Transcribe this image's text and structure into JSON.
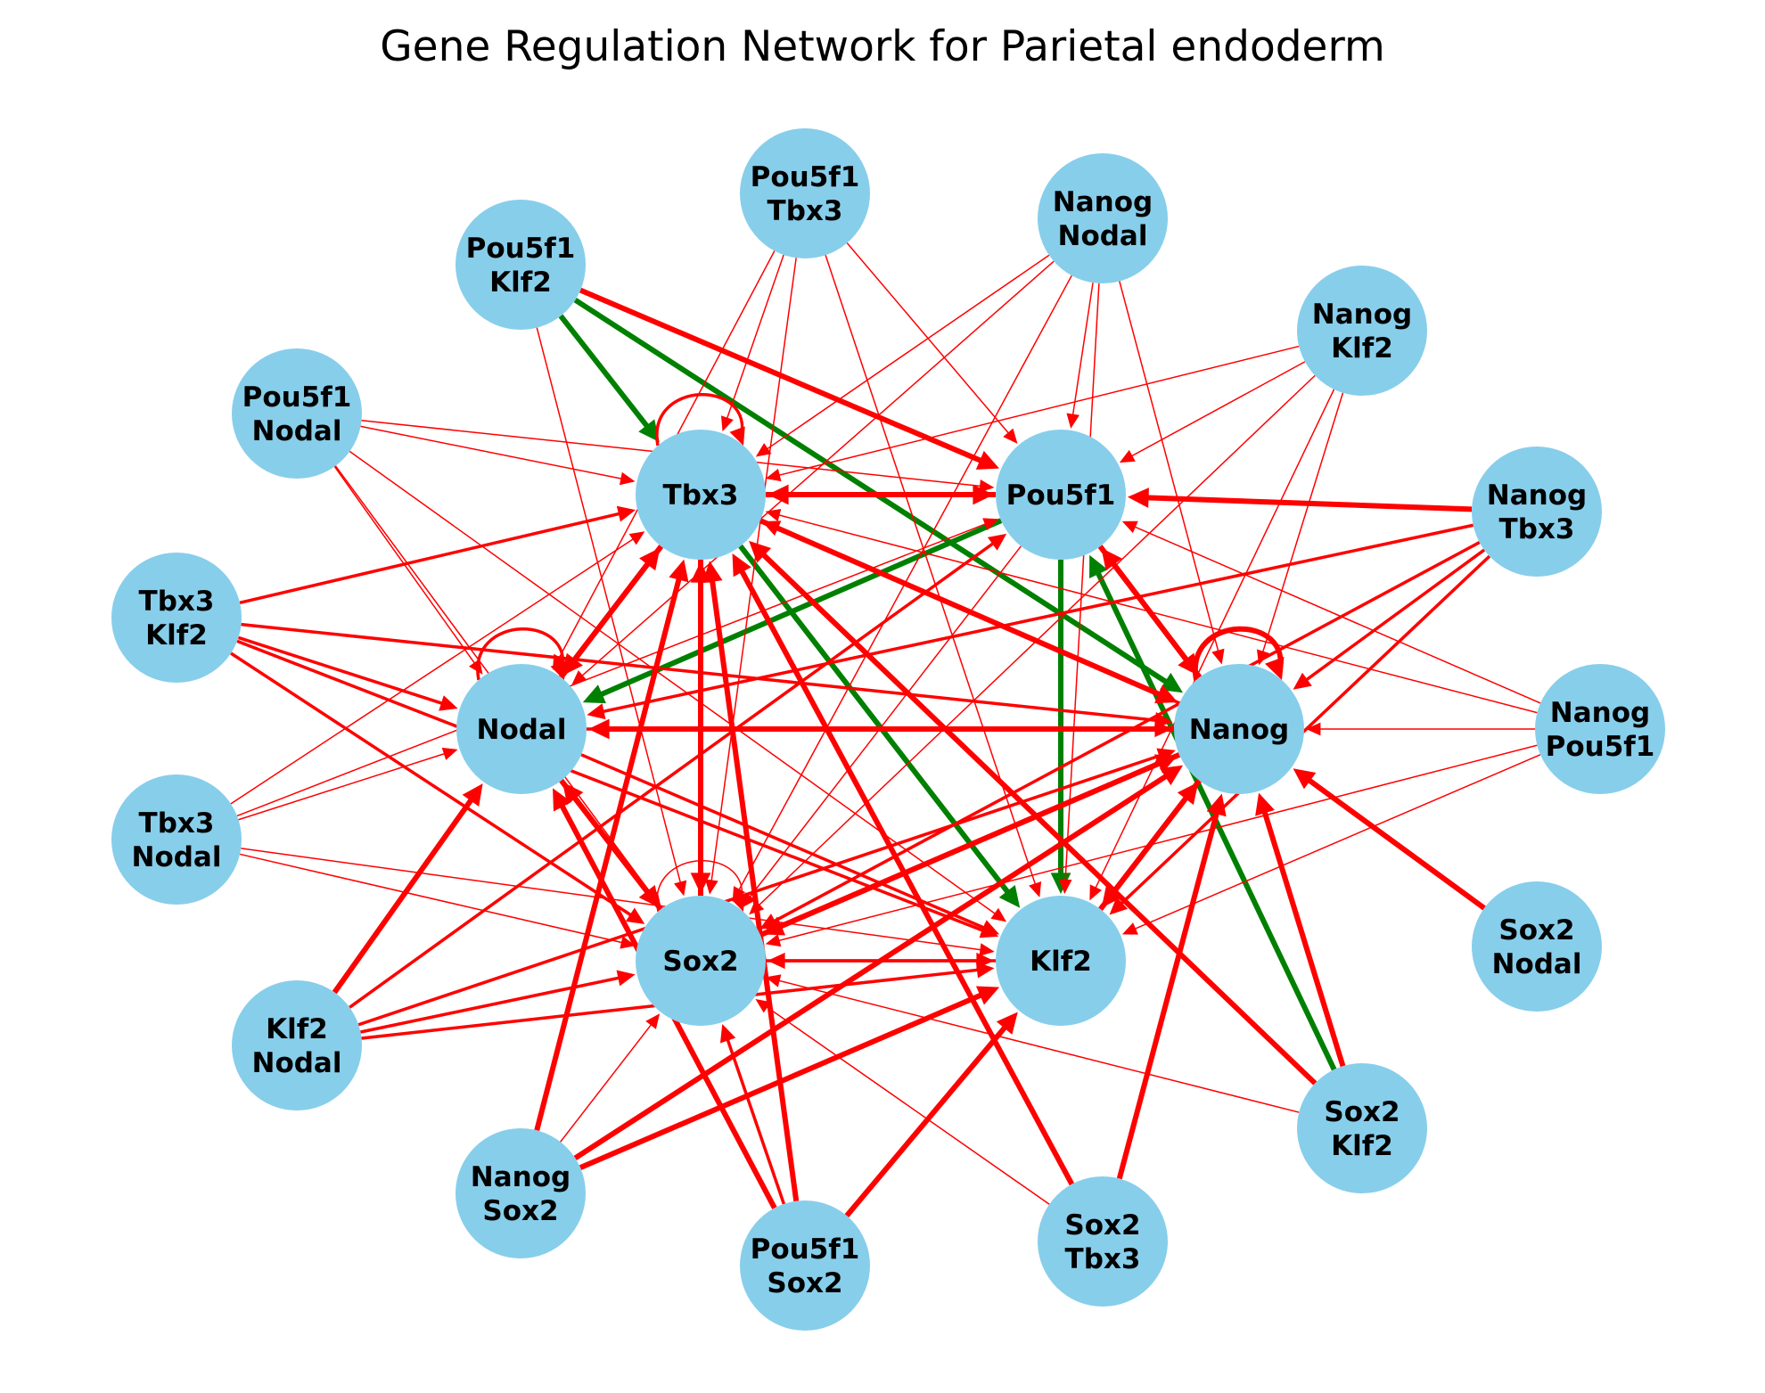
{
  "title": "Gene Regulation Network for Parietal endoderm",
  "colors": {
    "node_fill": "#87CEEB",
    "repression": "#FF0000",
    "activation": "#008000",
    "background": "#FFFFFF"
  },
  "nodes": [
    {
      "id": "Tbx3",
      "lines": [
        "Tbx3"
      ]
    },
    {
      "id": "Pou5f1",
      "lines": [
        "Pou5f1"
      ]
    },
    {
      "id": "Nanog",
      "lines": [
        "Nanog"
      ]
    },
    {
      "id": "Nodal",
      "lines": [
        "Nodal"
      ]
    },
    {
      "id": "Sox2",
      "lines": [
        "Sox2"
      ]
    },
    {
      "id": "Klf2",
      "lines": [
        "Klf2"
      ]
    },
    {
      "id": "Pou5f1_Tbx3",
      "lines": [
        "Pou5f1",
        "Tbx3"
      ]
    },
    {
      "id": "Nanog_Nodal",
      "lines": [
        "Nanog",
        "Nodal"
      ]
    },
    {
      "id": "Pou5f1_Klf2",
      "lines": [
        "Pou5f1",
        "Klf2"
      ]
    },
    {
      "id": "Nanog_Klf2",
      "lines": [
        "Nanog",
        "Klf2"
      ]
    },
    {
      "id": "Pou5f1_Nodal",
      "lines": [
        "Pou5f1",
        "Nodal"
      ]
    },
    {
      "id": "Nanog_Tbx3",
      "lines": [
        "Nanog",
        "Tbx3"
      ]
    },
    {
      "id": "Tbx3_Klf2",
      "lines": [
        "Tbx3",
        "Klf2"
      ]
    },
    {
      "id": "Nanog_Pou5f1",
      "lines": [
        "Nanog",
        "Pou5f1"
      ]
    },
    {
      "id": "Tbx3_Nodal",
      "lines": [
        "Tbx3",
        "Nodal"
      ]
    },
    {
      "id": "Sox2_Nodal",
      "lines": [
        "Sox2",
        "Nodal"
      ]
    },
    {
      "id": "Klf2_Nodal",
      "lines": [
        "Klf2",
        "Nodal"
      ]
    },
    {
      "id": "Sox2_Klf2",
      "lines": [
        "Sox2",
        "Klf2"
      ]
    },
    {
      "id": "Nanog_Sox2",
      "lines": [
        "Nanog",
        "Sox2"
      ]
    },
    {
      "id": "Sox2_Tbx3",
      "lines": [
        "Sox2",
        "Tbx3"
      ]
    },
    {
      "id": "Pou5f1_Sox2",
      "lines": [
        "Pou5f1",
        "Sox2"
      ]
    }
  ],
  "edges": [
    {
      "from": "Pou5f1_Klf2",
      "to": "Tbx3",
      "type": "activation",
      "weight": 3
    },
    {
      "from": "Pou5f1_Klf2",
      "to": "Nanog",
      "type": "activation",
      "weight": 3
    },
    {
      "from": "Pou5f1_Klf2",
      "to": "Pou5f1",
      "type": "repression",
      "weight": 3
    },
    {
      "from": "Pou5f1_Klf2",
      "to": "Sox2",
      "type": "repression",
      "weight": 1
    },
    {
      "from": "Tbx3",
      "to": "Klf2",
      "type": "activation",
      "weight": 3
    },
    {
      "from": "Pou5f1",
      "to": "Klf2",
      "type": "activation",
      "weight": 3
    },
    {
      "from": "Pou5f1",
      "to": "Nodal",
      "type": "activation",
      "weight": 3
    },
    {
      "from": "Sox2_Klf2",
      "to": "Pou5f1",
      "type": "activation",
      "weight": 3
    },
    {
      "from": "Sox2_Klf2",
      "to": "Nanog",
      "type": "repression",
      "weight": 3
    },
    {
      "from": "Sox2_Klf2",
      "to": "Tbx3",
      "type": "repression",
      "weight": 3
    },
    {
      "from": "Sox2_Klf2",
      "to": "Sox2",
      "type": "repression",
      "weight": 1
    },
    {
      "from": "Tbx3",
      "to": "Pou5f1",
      "type": "repression",
      "weight": 3
    },
    {
      "from": "Pou5f1",
      "to": "Tbx3",
      "type": "repression",
      "weight": 3
    },
    {
      "from": "Tbx3",
      "to": "Nodal",
      "type": "repression",
      "weight": 3
    },
    {
      "from": "Nodal",
      "to": "Tbx3",
      "type": "repression",
      "weight": 3
    },
    {
      "from": "Tbx3",
      "to": "Sox2",
      "type": "repression",
      "weight": 3
    },
    {
      "from": "Sox2",
      "to": "Tbx3",
      "type": "repression",
      "weight": 3
    },
    {
      "from": "Tbx3",
      "to": "Nanog",
      "type": "repression",
      "weight": 3
    },
    {
      "from": "Nanog",
      "to": "Tbx3",
      "type": "repression",
      "weight": 2
    },
    {
      "from": "Pou5f1",
      "to": "Nanog",
      "type": "repression",
      "weight": 3
    },
    {
      "from": "Nanog",
      "to": "Pou5f1",
      "type": "repression",
      "weight": 3
    },
    {
      "from": "Nanog",
      "to": "Nodal",
      "type": "repression",
      "weight": 3
    },
    {
      "from": "Nodal",
      "to": "Nanog",
      "type": "repression",
      "weight": 2
    },
    {
      "from": "Nanog",
      "to": "Sox2",
      "type": "repression",
      "weight": 3
    },
    {
      "from": "Sox2",
      "to": "Nanog",
      "type": "repression",
      "weight": 3
    },
    {
      "from": "Nanog",
      "to": "Klf2",
      "type": "repression",
      "weight": 3
    },
    {
      "from": "Klf2",
      "to": "Nanog",
      "type": "repression",
      "weight": 3
    },
    {
      "from": "Nodal",
      "to": "Sox2",
      "type": "repression",
      "weight": 3
    },
    {
      "from": "Sox2",
      "to": "Nodal",
      "type": "repression",
      "weight": 3
    },
    {
      "from": "Nodal",
      "to": "Klf2",
      "type": "repression",
      "weight": 2
    },
    {
      "from": "Sox2",
      "to": "Klf2",
      "type": "repression",
      "weight": 2
    },
    {
      "from": "Klf2",
      "to": "Sox2",
      "type": "repression",
      "weight": 2
    },
    {
      "from": "Pou5f1",
      "to": "Sox2",
      "type": "repression",
      "weight": 1
    },
    {
      "from": "Nanog_Tbx3",
      "to": "Pou5f1",
      "type": "repression",
      "weight": 3
    },
    {
      "from": "Nanog_Tbx3",
      "to": "Nanog",
      "type": "repression",
      "weight": 2
    },
    {
      "from": "Nanog_Tbx3",
      "to": "Nodal",
      "type": "repression",
      "weight": 2
    },
    {
      "from": "Nanog_Tbx3",
      "to": "Klf2",
      "type": "repression",
      "weight": 2
    },
    {
      "from": "Nanog_Tbx3",
      "to": "Sox2",
      "type": "repression",
      "weight": 2
    },
    {
      "from": "Nanog_Pou5f1",
      "to": "Nanog",
      "type": "repression",
      "weight": 1
    },
    {
      "from": "Nanog_Pou5f1",
      "to": "Tbx3",
      "type": "repression",
      "weight": 1
    },
    {
      "from": "Nanog_Pou5f1",
      "to": "Pou5f1",
      "type": "repression",
      "weight": 1
    },
    {
      "from": "Nanog_Pou5f1",
      "to": "Sox2",
      "type": "repression",
      "weight": 1
    },
    {
      "from": "Nanog_Pou5f1",
      "to": "Klf2",
      "type": "repression",
      "weight": 1
    },
    {
      "from": "Sox2_Nodal",
      "to": "Nanog",
      "type": "repression",
      "weight": 3
    },
    {
      "from": "Sox2_Tbx3",
      "to": "Tbx3",
      "type": "repression",
      "weight": 3
    },
    {
      "from": "Sox2_Tbx3",
      "to": "Nanog",
      "type": "repression",
      "weight": 3
    },
    {
      "from": "Sox2_Tbx3",
      "to": "Sox2",
      "type": "repression",
      "weight": 1
    },
    {
      "from": "Pou5f1_Sox2",
      "to": "Tbx3",
      "type": "repression",
      "weight": 3
    },
    {
      "from": "Pou5f1_Sox2",
      "to": "Sox2",
      "type": "repression",
      "weight": 2
    },
    {
      "from": "Pou5f1_Sox2",
      "to": "Klf2",
      "type": "repression",
      "weight": 3
    },
    {
      "from": "Pou5f1_Sox2",
      "to": "Nodal",
      "type": "repression",
      "weight": 3
    },
    {
      "from": "Nanog_Sox2",
      "to": "Tbx3",
      "type": "repression",
      "weight": 3
    },
    {
      "from": "Nanog_Sox2",
      "to": "Sox2",
      "type": "repression",
      "weight": 1
    },
    {
      "from": "Nanog_Sox2",
      "to": "Klf2",
      "type": "repression",
      "weight": 3
    },
    {
      "from": "Nanog_Sox2",
      "to": "Nanog",
      "type": "repression",
      "weight": 3
    },
    {
      "from": "Klf2_Nodal",
      "to": "Nodal",
      "type": "repression",
      "weight": 3
    },
    {
      "from": "Klf2_Nodal",
      "to": "Sox2",
      "type": "repression",
      "weight": 2
    },
    {
      "from": "Klf2_Nodal",
      "to": "Klf2",
      "type": "repression",
      "weight": 2
    },
    {
      "from": "Klf2_Nodal",
      "to": "Pou5f1",
      "type": "repression",
      "weight": 2
    },
    {
      "from": "Klf2_Nodal",
      "to": "Nanog",
      "type": "repression",
      "weight": 2
    },
    {
      "from": "Tbx3_Nodal",
      "to": "Nodal",
      "type": "repression",
      "weight": 1
    },
    {
      "from": "Tbx3_Nodal",
      "to": "Sox2",
      "type": "repression",
      "weight": 1
    },
    {
      "from": "Tbx3_Nodal",
      "to": "Klf2",
      "type": "repression",
      "weight": 1
    },
    {
      "from": "Tbx3_Nodal",
      "to": "Pou5f1",
      "type": "repression",
      "weight": 1
    },
    {
      "from": "Tbx3_Nodal",
      "to": "Tbx3",
      "type": "repression",
      "weight": 1
    },
    {
      "from": "Tbx3_Klf2",
      "to": "Tbx3",
      "type": "repression",
      "weight": 2
    },
    {
      "from": "Tbx3_Klf2",
      "to": "Nodal",
      "type": "repression",
      "weight": 2
    },
    {
      "from": "Tbx3_Klf2",
      "to": "Sox2",
      "type": "repression",
      "weight": 2
    },
    {
      "from": "Tbx3_Klf2",
      "to": "Nanog",
      "type": "repression",
      "weight": 2
    },
    {
      "from": "Tbx3_Klf2",
      "to": "Klf2",
      "type": "repression",
      "weight": 2
    },
    {
      "from": "Pou5f1_Nodal",
      "to": "Tbx3",
      "type": "repression",
      "weight": 1
    },
    {
      "from": "Pou5f1_Nodal",
      "to": "Pou5f1",
      "type": "repression",
      "weight": 1
    },
    {
      "from": "Pou5f1_Nodal",
      "to": "Nodal",
      "type": "repression",
      "weight": 1
    },
    {
      "from": "Pou5f1_Nodal",
      "to": "Sox2",
      "type": "repression",
      "weight": 1
    },
    {
      "from": "Pou5f1_Nodal",
      "to": "Klf2",
      "type": "repression",
      "weight": 1
    },
    {
      "from": "Pou5f1_Tbx3",
      "to": "Tbx3",
      "type": "repression",
      "weight": 1
    },
    {
      "from": "Pou5f1_Tbx3",
      "to": "Pou5f1",
      "type": "repression",
      "weight": 1
    },
    {
      "from": "Pou5f1_Tbx3",
      "to": "Nodal",
      "type": "repression",
      "weight": 1
    },
    {
      "from": "Pou5f1_Tbx3",
      "to": "Sox2",
      "type": "repression",
      "weight": 1
    },
    {
      "from": "Pou5f1_Tbx3",
      "to": "Klf2",
      "type": "repression",
      "weight": 1
    },
    {
      "from": "Nanog_Nodal",
      "to": "Tbx3",
      "type": "repression",
      "weight": 1
    },
    {
      "from": "Nanog_Nodal",
      "to": "Pou5f1",
      "type": "repression",
      "weight": 1
    },
    {
      "from": "Nanog_Nodal",
      "to": "Nanog",
      "type": "repression",
      "weight": 1
    },
    {
      "from": "Nanog_Nodal",
      "to": "Nodal",
      "type": "repression",
      "weight": 1
    },
    {
      "from": "Nanog_Nodal",
      "to": "Sox2",
      "type": "repression",
      "weight": 1
    },
    {
      "from": "Nanog_Nodal",
      "to": "Klf2",
      "type": "repression",
      "weight": 1
    },
    {
      "from": "Nanog_Klf2",
      "to": "Tbx3",
      "type": "repression",
      "weight": 1
    },
    {
      "from": "Nanog_Klf2",
      "to": "Pou5f1",
      "type": "repression",
      "weight": 1
    },
    {
      "from": "Nanog_Klf2",
      "to": "Nanog",
      "type": "repression",
      "weight": 1
    },
    {
      "from": "Nanog_Klf2",
      "to": "Sox2",
      "type": "repression",
      "weight": 1
    },
    {
      "from": "Nanog_Klf2",
      "to": "Klf2",
      "type": "repression",
      "weight": 1
    }
  ],
  "self_loops": [
    {
      "node": "Tbx3",
      "type": "repression",
      "weight": 2
    },
    {
      "node": "Nanog",
      "type": "repression",
      "weight": 3
    },
    {
      "node": "Nodal",
      "type": "repression",
      "weight": 2
    },
    {
      "node": "Sox2",
      "type": "repression",
      "weight": 1
    }
  ]
}
